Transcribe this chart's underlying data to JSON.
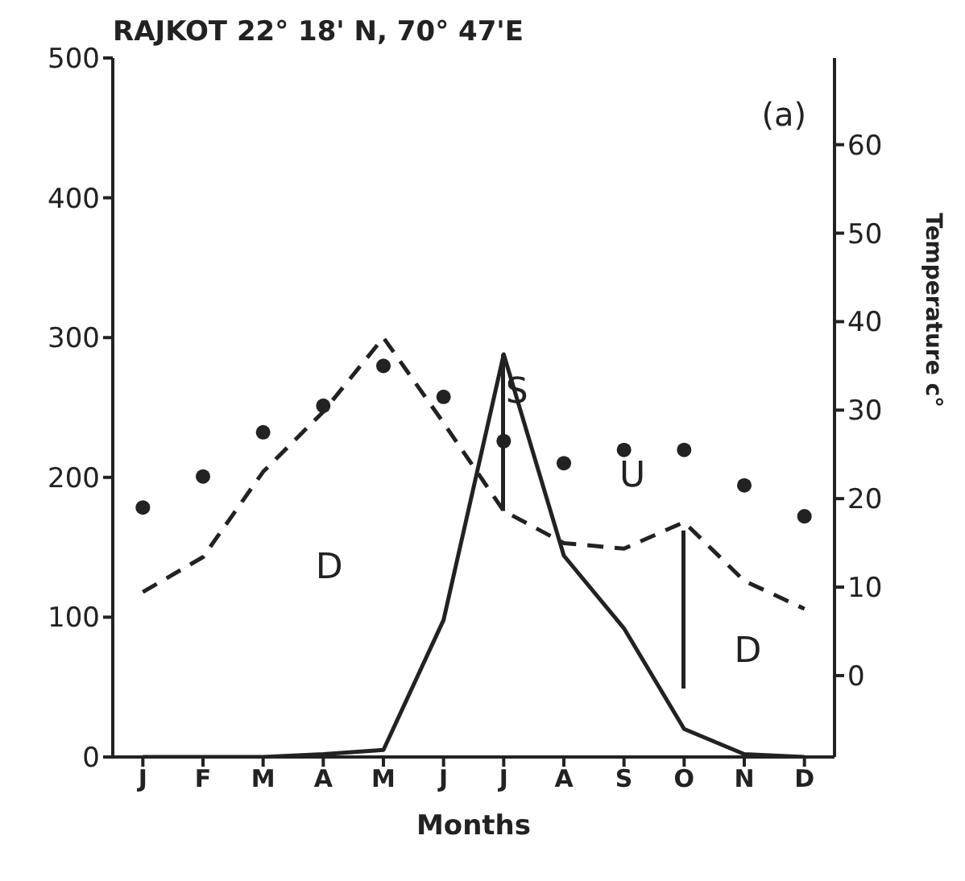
{
  "chart_data": {
    "type": "line",
    "title": "RAJKOT 22° 18' N, 70° 47'E",
    "xlabel": "Months",
    "y2label": "Temperature c°",
    "categories": [
      "J",
      "F",
      "M",
      "A",
      "M",
      "J",
      "J",
      "A",
      "S",
      "O",
      "N",
      "D"
    ],
    "series": [
      {
        "color": "#222222",
        "line_style": "dashed",
        "marker": "none",
        "values": [
          118,
          143,
          204,
          247,
          300,
          239,
          176,
          153,
          149,
          168,
          126,
          106
        ]
      },
      {
        "color": "#222222",
        "line_style": "solid",
        "marker": "none",
        "values": [
          0,
          0,
          0,
          2,
          5,
          98,
          288,
          144,
          92,
          20,
          2,
          0
        ]
      },
      {
        "type": "bar",
        "color": "#222222",
        "values": [
          null,
          null,
          null,
          null,
          null,
          null,
          112,
          null,
          null,
          113,
          null,
          null
        ],
        "base": [
          null,
          null,
          null,
          null,
          null,
          null,
          176,
          null,
          null,
          49,
          null,
          null
        ]
      },
      {
        "type": "scatter",
        "axis": "y2",
        "color": "#222222",
        "marker": "circle",
        "values": [
          19,
          22.5,
          27.5,
          30.5,
          35,
          31.5,
          26.5,
          24,
          25.5,
          25.5,
          21.5,
          18
        ]
      }
    ],
    "ylim": [
      0,
      500
    ],
    "yticks": [
      0,
      100,
      200,
      300,
      400,
      500
    ],
    "y2lim": [
      -9.2,
      69.8
    ],
    "y2ticks": [
      0,
      10,
      20,
      30,
      40,
      50,
      60
    ],
    "annotations": [
      "(a)",
      "D",
      "S",
      "U",
      "D"
    ]
  }
}
